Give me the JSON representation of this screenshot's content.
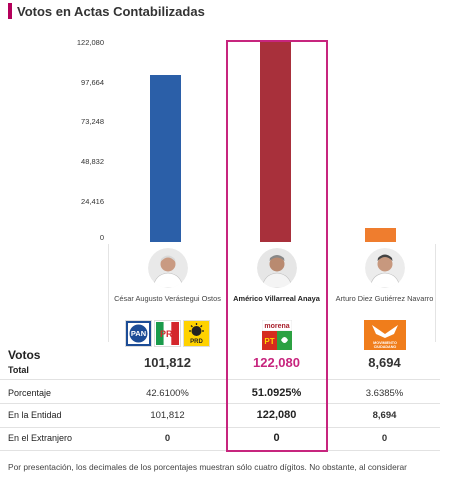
{
  "header": {
    "title": "Votos en Actas Contabilizadas"
  },
  "colors": {
    "accent": "#c7257e",
    "title_bar": "#b5005b",
    "bar_1": "#2b5fa8",
    "bar_2": "#a8303b",
    "bar_3": "#ef7d2e"
  },
  "chart_data": {
    "type": "bar",
    "categories": [
      "César Augusto Verástegui Ostos",
      "Américo Villarreal Anaya",
      "Arturo Diez Gutiérrez Navarro"
    ],
    "values": [
      101812,
      122080,
      8694
    ],
    "ylim": [
      0,
      122080
    ],
    "yticks": [
      "122,080",
      "97,664",
      "73,248",
      "48,832",
      "24,416",
      "0"
    ]
  },
  "candidates": [
    {
      "name": "César Augusto Verástegui Ostos",
      "parties": [
        "PAN",
        "PRI",
        "PRD"
      ],
      "votes": "101,812",
      "percent": "42.6100%",
      "entity": "101,812",
      "abroad": "0"
    },
    {
      "name": "Américo Villarreal Anaya",
      "parties": [
        "morena",
        "PT",
        "PVEM"
      ],
      "votes": "122,080",
      "percent": "51.0925%",
      "entity": "122,080",
      "abroad": "0"
    },
    {
      "name": "Arturo Diez Gutiérrez Navarro",
      "parties": [
        "MOVIMIENTO CIUDADANO"
      ],
      "votes": "8,694",
      "percent": "3.6385%",
      "entity": "8,694",
      "abroad": "0"
    }
  ],
  "rows": {
    "votos": "Votos",
    "total": "Total",
    "porcentaje": "Porcentaje",
    "entidad": "En la Entidad",
    "extranjero": "En el Extranjero"
  },
  "footer": {
    "note": "Por presentación, los decimales de los porcentajes muestran sólo cuatro dígitos. No obstante, al considerar"
  }
}
